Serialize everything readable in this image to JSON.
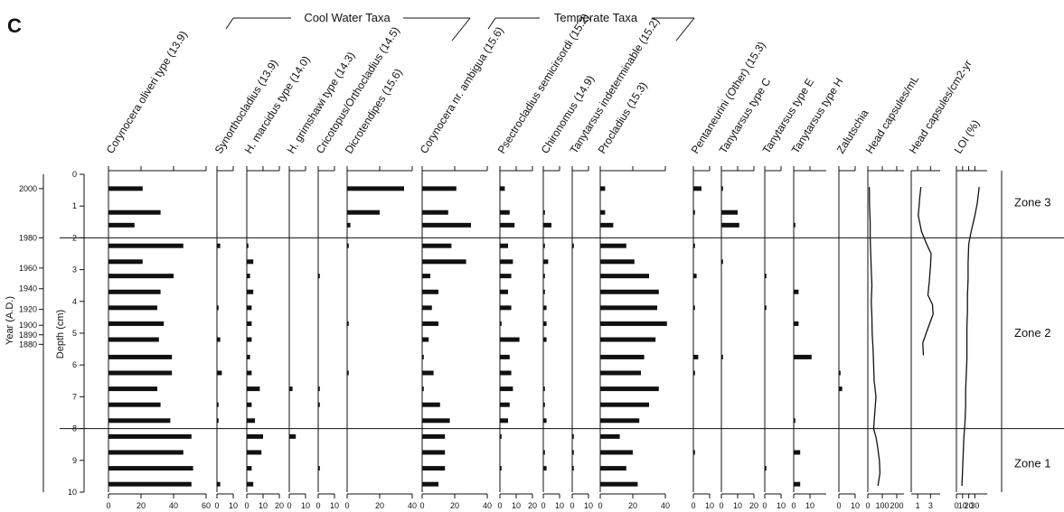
{
  "chart_data": {
    "type": "bar",
    "panel_label": "C",
    "group_labels": [
      "Cool Water Taxa",
      "Temperate Taxa"
    ],
    "depth_axis": {
      "label": "Depth (cm)",
      "range": [
        0,
        10
      ],
      "ticks": [
        "0",
        "1",
        "2",
        "3",
        "4",
        "5",
        "6",
        "7",
        "8",
        "9",
        "10"
      ]
    },
    "year_axis": {
      "label": "Year (A.D.)",
      "ticks": [
        {
          "label": "2000",
          "depth": 0.45
        },
        {
          "label": "1980",
          "depth": 2.0
        },
        {
          "label": "1960",
          "depth": 2.95
        },
        {
          "label": "1940",
          "depth": 3.6
        },
        {
          "label": "1920",
          "depth": 4.25
        },
        {
          "label": "1900",
          "depth": 4.75
        },
        {
          "label": "1890",
          "depth": 5.05
        },
        {
          "label": "1880",
          "depth": 5.35
        }
      ]
    },
    "zone_boundaries": [
      2.0,
      8.0
    ],
    "zones": [
      {
        "label": "Zone 3",
        "depth": 0.9
      },
      {
        "label": "Zone 2",
        "depth": 5.0
      },
      {
        "label": "Zone 1",
        "depth": 9.1
      }
    ],
    "sample_depths": [
      0.45,
      1.2,
      1.6,
      2.25,
      2.75,
      3.2,
      3.7,
      4.2,
      4.7,
      5.2,
      5.75,
      6.25,
      6.75,
      7.25,
      7.75,
      8.25,
      8.75,
      9.25,
      9.75
    ],
    "series": [
      {
        "name": "Corynocera oliveri type (13.9)",
        "axis_max": 60,
        "ticks": [
          "0",
          "20",
          "40",
          "60"
        ],
        "values": [
          21,
          32,
          16,
          46,
          21,
          40,
          32,
          30,
          34,
          31,
          39,
          39,
          30,
          32,
          38,
          51,
          46,
          52,
          51
        ]
      },
      {
        "name": "Synorthocladius (13.9)",
        "axis_max": 10,
        "ticks": [
          "0",
          "10"
        ],
        "values": [
          0,
          0,
          0,
          2,
          0,
          0,
          0,
          1,
          0,
          2,
          0,
          3,
          0,
          1,
          1,
          0,
          0,
          0,
          2
        ]
      },
      {
        "name": "H. marcidus type (14.0)",
        "axis_max": 20,
        "ticks": [
          "0",
          "10",
          "20"
        ],
        "values": [
          0,
          0,
          0,
          1,
          4,
          2,
          4,
          3,
          3,
          3,
          2,
          3,
          8,
          3,
          5,
          10,
          9,
          3,
          4
        ]
      },
      {
        "name": "H. grimshawi type (14.3)",
        "axis_max": 10,
        "ticks": [
          "0",
          "10"
        ],
        "values": [
          0,
          0,
          0,
          0,
          0,
          0,
          0,
          0,
          0,
          0,
          0,
          0,
          2,
          0,
          0,
          4,
          0,
          0,
          0
        ]
      },
      {
        "name": "Cricotopus/Orthocladius (14.5)",
        "axis_max": 10,
        "ticks": [
          "0",
          "10"
        ],
        "values": [
          0,
          0,
          0,
          0,
          0,
          1,
          0,
          0,
          0,
          0,
          0,
          0,
          1,
          1,
          0,
          0,
          0,
          1,
          0
        ]
      },
      {
        "name": "Dicrotendipes (15.6)",
        "axis_max": 40,
        "ticks": [
          "0",
          "20",
          "40"
        ],
        "values": [
          35,
          20,
          2,
          1,
          0,
          0,
          0,
          0,
          1,
          0,
          0,
          1,
          0,
          0,
          0,
          0,
          0,
          0,
          0
        ]
      },
      {
        "name": "Corynocera nr. ambigua (15.6)",
        "axis_max": 40,
        "ticks": [
          "0",
          "20",
          "40"
        ],
        "values": [
          21,
          16,
          30,
          18,
          27,
          5,
          10,
          6,
          10,
          4,
          1,
          7,
          1,
          11,
          17,
          14,
          14,
          14,
          10
        ]
      },
      {
        "name": "Psectrocladius semicirsordi (15.2)",
        "axis_max": 20,
        "ticks": [
          "0",
          "10",
          "20"
        ],
        "values": [
          3,
          6,
          9,
          5,
          8,
          7,
          5,
          7,
          1,
          12,
          6,
          7,
          8,
          6,
          5,
          1,
          0,
          1,
          0
        ]
      },
      {
        "name": "Chironomus (14.9)",
        "axis_max": 10,
        "ticks": [
          "0",
          "10"
        ],
        "values": [
          0,
          1,
          5,
          1,
          3,
          1,
          1,
          2,
          2,
          2,
          0,
          0,
          1,
          1,
          2,
          0,
          1,
          2,
          0
        ]
      },
      {
        "name": "Tanytarsus indeterminable (15.2)",
        "axis_max": 10,
        "ticks": [
          "0",
          "10"
        ],
        "values": [
          0,
          0,
          0,
          1,
          0,
          0,
          0,
          0,
          0,
          0,
          0,
          0,
          0,
          0,
          0,
          1,
          1,
          1,
          0
        ]
      },
      {
        "name": "Procladius (15.3)",
        "axis_max": 40,
        "ticks": [
          "0",
          "20",
          "40"
        ],
        "values": [
          3,
          3,
          8,
          16,
          21,
          30,
          36,
          35,
          41,
          34,
          27,
          25,
          36,
          30,
          24,
          12,
          20,
          16,
          23
        ]
      },
      {
        "name": "Pentaneurini (Other) (15.3)",
        "axis_max": 10,
        "ticks": [
          "0",
          "10"
        ],
        "values": [
          5,
          1,
          0,
          1,
          0,
          2,
          0,
          1,
          0,
          0,
          3,
          1,
          0,
          0,
          0,
          0,
          1,
          0,
          0
        ]
      },
      {
        "name": "Tanytarsus type C",
        "axis_max": 20,
        "ticks": [
          "0",
          "10",
          "20"
        ],
        "values": [
          1,
          10,
          11,
          0,
          1,
          0,
          0,
          0,
          0,
          0,
          1,
          0,
          0,
          0,
          0,
          0,
          0,
          0,
          0
        ]
      },
      {
        "name": "Tanytarsus type E",
        "axis_max": 10,
        "ticks": [
          "0",
          "10"
        ],
        "values": [
          0,
          0,
          0,
          0,
          0,
          1,
          0,
          1,
          0,
          0,
          0,
          0,
          0,
          0,
          0,
          0,
          0,
          1,
          0
        ]
      },
      {
        "name": "Tanytarsus type H",
        "axis_max": 20,
        "ticks": [
          "0",
          "10"
        ],
        "values": [
          0,
          0,
          1,
          0,
          0,
          0,
          3,
          0,
          3,
          0,
          11,
          0,
          0,
          0,
          1,
          0,
          4,
          0,
          4
        ]
      },
      {
        "name": "Zalutschia",
        "axis_max": 10,
        "ticks": [
          "0",
          "10"
        ],
        "values": [
          0,
          0,
          0,
          0,
          0,
          0,
          0,
          0,
          0,
          0,
          0,
          1,
          2,
          0,
          0,
          0,
          0,
          0,
          0
        ]
      }
    ],
    "curves": [
      {
        "name": "Head capsules/mL",
        "axis_max": 250,
        "ticks": [
          "0",
          "100",
          "200"
        ],
        "points": [
          [
            0.4,
            10
          ],
          [
            1.0,
            12
          ],
          [
            1.5,
            16
          ],
          [
            2.0,
            16
          ],
          [
            2.5,
            20
          ],
          [
            3.0,
            24
          ],
          [
            3.5,
            28
          ],
          [
            4.0,
            24
          ],
          [
            4.5,
            28
          ],
          [
            5.0,
            30
          ],
          [
            5.5,
            36
          ],
          [
            6.0,
            40
          ],
          [
            6.5,
            44
          ],
          [
            7.0,
            56
          ],
          [
            7.5,
            48
          ],
          [
            8.0,
            40
          ],
          [
            8.3,
            58
          ],
          [
            8.6,
            68
          ],
          [
            9.0,
            80
          ],
          [
            9.4,
            84
          ],
          [
            9.8,
            70
          ]
        ]
      },
      {
        "name": "Head capsules/cm2-yr",
        "axis_max": 4.5,
        "ticks": [
          "1",
          "3"
        ],
        "points": [
          [
            0.4,
            1.5
          ],
          [
            0.8,
            1.3
          ],
          [
            1.3,
            1.1
          ],
          [
            1.8,
            1.6
          ],
          [
            2.2,
            2.4
          ],
          [
            2.5,
            3.1
          ],
          [
            2.9,
            3.0
          ],
          [
            3.4,
            2.8
          ],
          [
            3.8,
            2.6
          ],
          [
            4.1,
            3.3
          ],
          [
            4.4,
            3.4
          ],
          [
            4.9,
            2.5
          ],
          [
            5.3,
            1.8
          ],
          [
            5.7,
            1.9
          ]
        ]
      },
      {
        "name": "LOI (%)",
        "axis_max": 50,
        "ticks": [
          "0",
          "10",
          "20",
          "30"
        ],
        "points": [
          [
            0.4,
            37
          ],
          [
            0.9,
            34
          ],
          [
            1.3,
            30
          ],
          [
            1.8,
            24
          ],
          [
            2.2,
            20
          ],
          [
            2.8,
            19
          ],
          [
            3.3,
            19
          ],
          [
            3.8,
            18
          ],
          [
            4.3,
            18
          ],
          [
            4.8,
            17
          ],
          [
            5.3,
            17
          ],
          [
            5.8,
            17
          ],
          [
            6.3,
            16
          ],
          [
            6.8,
            15
          ],
          [
            7.3,
            15
          ],
          [
            7.8,
            14
          ],
          [
            8.3,
            12
          ],
          [
            8.8,
            11
          ],
          [
            9.3,
            10
          ],
          [
            9.8,
            9
          ]
        ]
      }
    ]
  }
}
